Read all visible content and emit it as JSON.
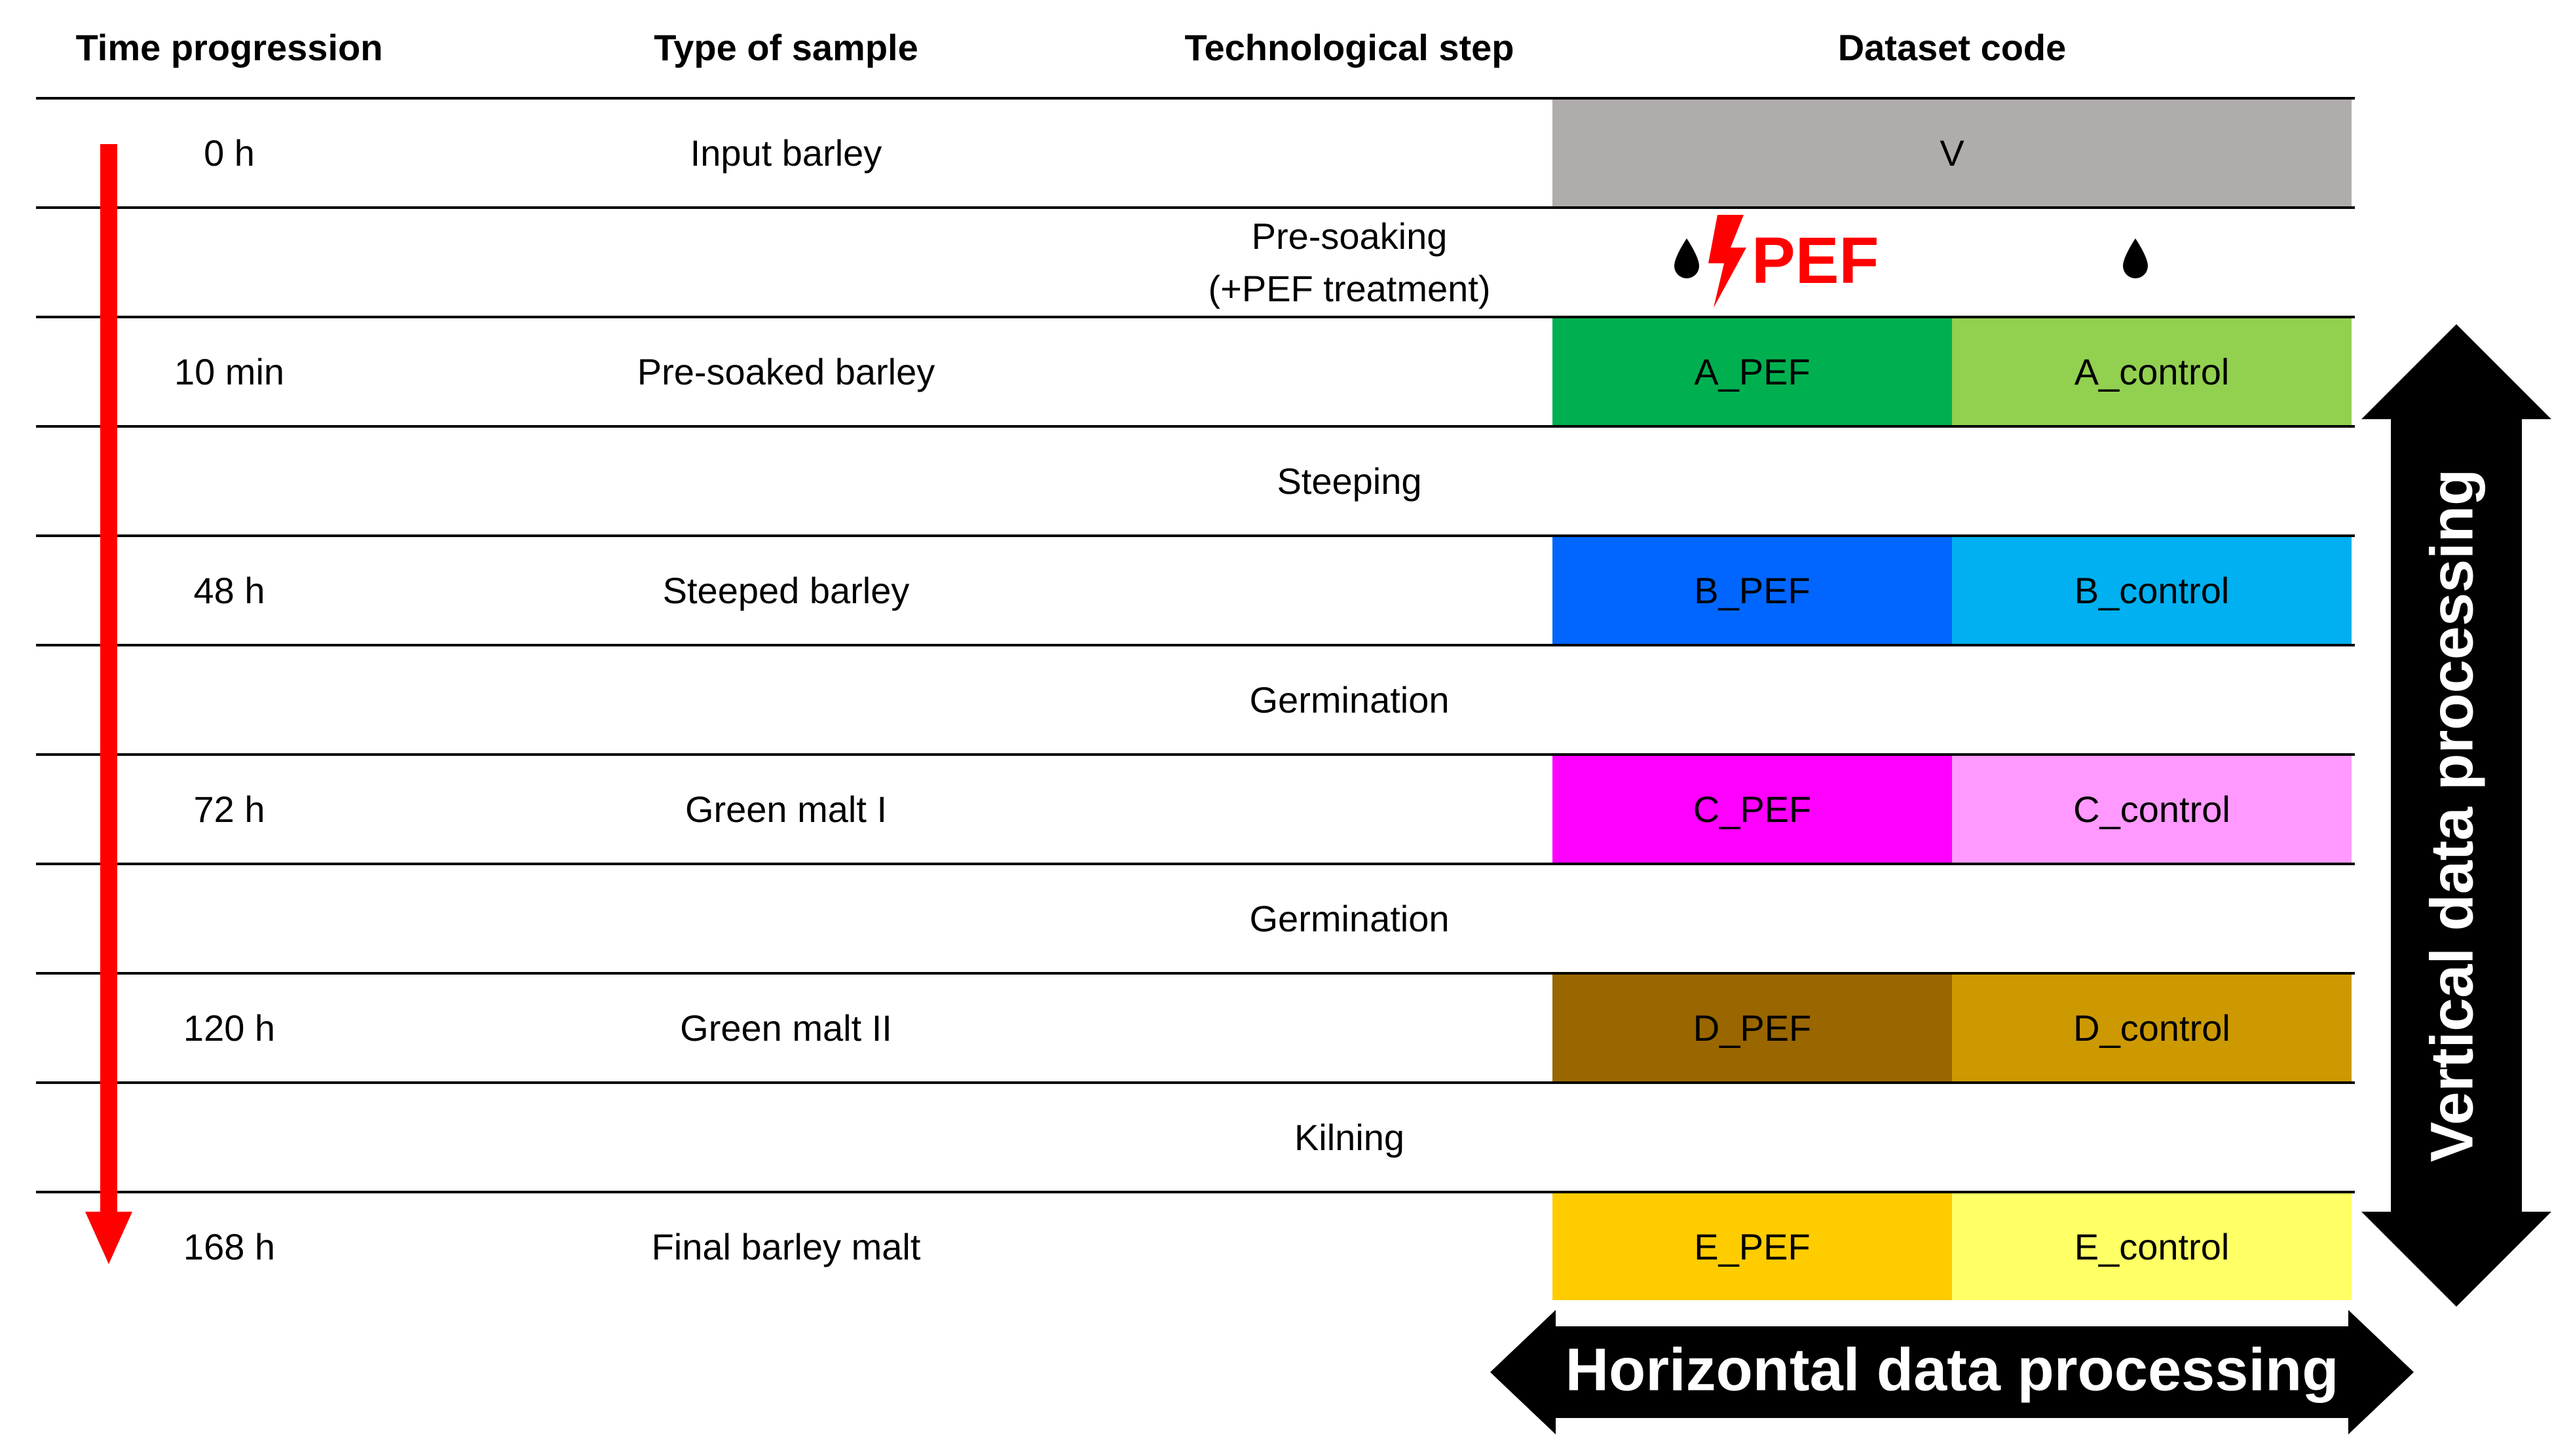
{
  "headers": {
    "time": "Time progression",
    "sample": "Type of sample",
    "step": "Technological step",
    "code": "Dataset code"
  },
  "rows": [
    {
      "time": "0 h",
      "sample": "Input barley",
      "step": "",
      "codes": [
        "V"
      ]
    },
    {
      "time": "",
      "sample": "",
      "step_line1": "Pre-soaking",
      "step_line2": "(+PEF treatment)"
    },
    {
      "time": "10 min",
      "sample": "Pre-soaked barley",
      "codes": [
        "A_PEF",
        "A_control"
      ]
    },
    {
      "time": "",
      "sample": "",
      "step": "Steeping"
    },
    {
      "time": "48 h",
      "sample": "Steeped barley",
      "codes": [
        "B_PEF",
        "B_control"
      ]
    },
    {
      "time": "",
      "sample": "",
      "step": "Germination"
    },
    {
      "time": "72 h",
      "sample": "Green malt I",
      "codes": [
        "C_PEF",
        "C_control"
      ]
    },
    {
      "time": "",
      "sample": "",
      "step": "Germination"
    },
    {
      "time": "120 h",
      "sample": "Green malt II",
      "codes": [
        "D_PEF",
        "D_control"
      ]
    },
    {
      "time": "",
      "sample": "",
      "step": "Kilning"
    },
    {
      "time": "168 h",
      "sample": "Final barley malt",
      "codes": [
        "E_PEF",
        "E_control"
      ]
    }
  ],
  "pef_label": "PEF",
  "arrows": {
    "horizontal": "Horizontal data processing",
    "vertical": "Vertical data processing"
  },
  "colors": {
    "V": "#b0acab",
    "A_PEF": "#00b050",
    "A_control": "#92d050",
    "B_PEF": "#0066ff",
    "B_control": "#00b0f0",
    "C_PEF": "#ff00ff",
    "C_control": "#ff99ff",
    "D_PEF": "#996600",
    "D_control": "#cc9900",
    "E_PEF": "#ffcc00",
    "E_control": "#ffff66",
    "time_arrow": "#ff0000",
    "pef_red": "#ff0000"
  },
  "icons": [
    "water-drop-icon",
    "lightning-bolt-icon",
    "water-drop-icon",
    "double-arrow-icon"
  ]
}
